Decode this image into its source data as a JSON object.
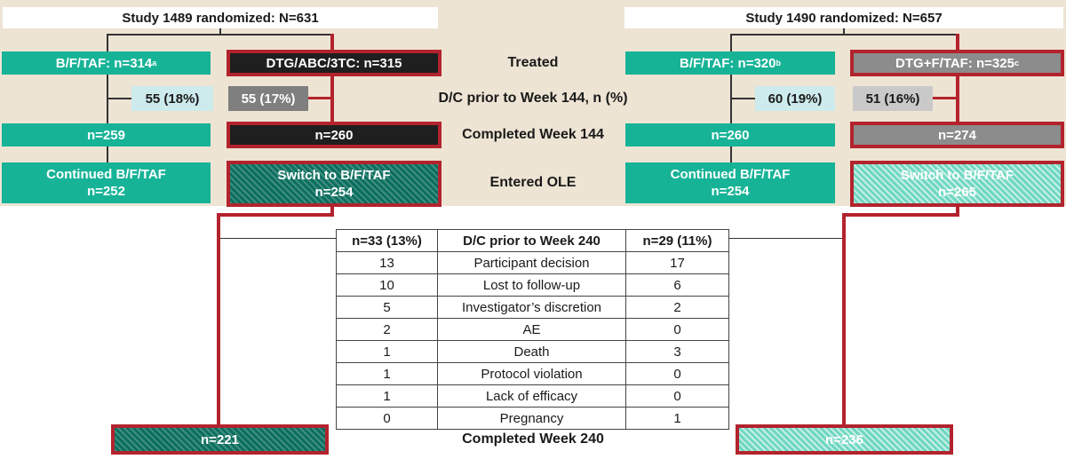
{
  "study_1489": {
    "randomized": "Study 1489 randomized: N=631",
    "bftaf_treated": "B/F/TAF: n=314",
    "bftaf_treated_sup": "a",
    "comparator_treated": "DTG/ABC/3TC: n=315",
    "dc_bftaf": "55 (18%)",
    "dc_comparator": "55 (17%)",
    "completed144_bftaf": "n=259",
    "completed144_comparator": "n=260",
    "ole_bftaf_line1": "Continued B/F/TAF",
    "ole_bftaf_line2": "n=252",
    "ole_switch_line1": "Switch to B/F/TAF",
    "ole_switch_line2": "n=254",
    "completed240": "n=221"
  },
  "study_1490": {
    "randomized": "Study 1490 randomized: N=657",
    "bftaf_treated": "B/F/TAF: n=320",
    "bftaf_treated_sup": "b",
    "comparator_treated": "DTG+F/TAF: n=325",
    "comparator_treated_sup": "c",
    "dc_bftaf": "60 (19%)",
    "dc_comparator": "51 (16%)",
    "completed144_bftaf": "n=260",
    "completed144_comparator": "n=274",
    "ole_bftaf_line1": "Continued B/F/TAF",
    "ole_bftaf_line2": "n=254",
    "ole_switch_line1": "Switch to B/F/TAF",
    "ole_switch_line2": "n=265",
    "completed240": "n=236"
  },
  "stage_labels": {
    "treated": "Treated",
    "dc_144": "D/C prior to Week 144, n (%)",
    "completed_144": "Completed Week 144",
    "entered_ole": "Entered OLE",
    "completed_240": "Completed Week 240"
  },
  "dc_table": {
    "headers": [
      "n=33 (13%)",
      "D/C prior to Week 240",
      "n=29 (11%)"
    ],
    "rows": [
      [
        "13",
        "Participant decision",
        "17"
      ],
      [
        "10",
        "Lost to follow-up",
        "6"
      ],
      [
        "5",
        "Investigator’s discretion",
        "2"
      ],
      [
        "2",
        "AE",
        "0"
      ],
      [
        "1",
        "Death",
        "3"
      ],
      [
        "1",
        "Protocol violation",
        "0"
      ],
      [
        "1",
        "Lack of efficacy",
        "0"
      ],
      [
        "0",
        "Pregnancy",
        "1"
      ]
    ]
  },
  "colors": {
    "band": "#eee4d4",
    "teal": "#17b397",
    "highlight_red": "#b3232d",
    "dark": "#1f1f1f"
  }
}
